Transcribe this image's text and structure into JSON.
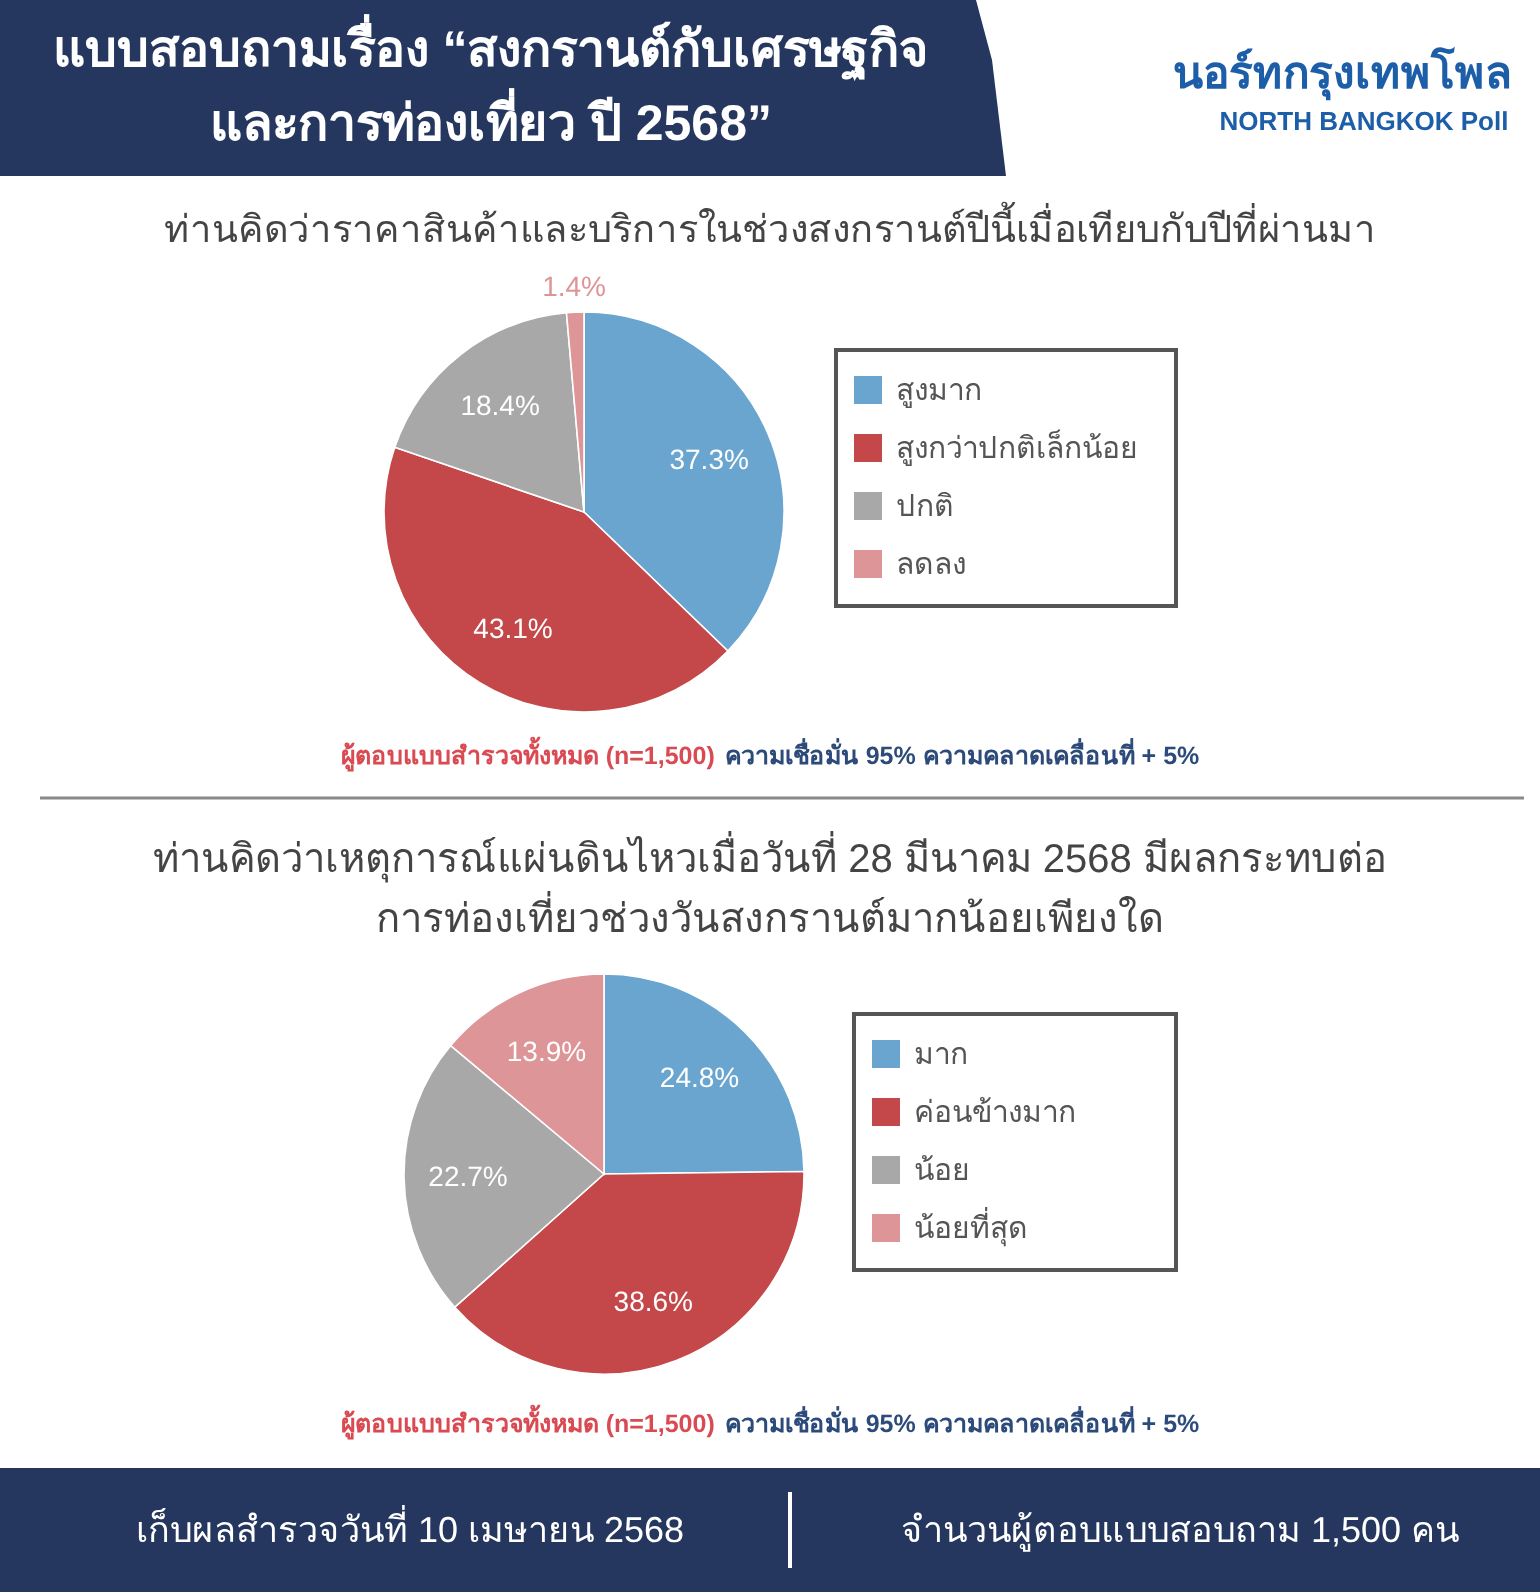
{
  "chart_data": [
    {
      "type": "pie",
      "title": "ท่านคิดว่าราคาสินค้าและบริการในช่วงสงกรานต์ปีนี้เมื่อเทียบกับปีที่ผ่านมา",
      "categories": [
        "สูงมาก",
        "สูงกว่าปกติเล็กน้อย",
        "ปกติ",
        "ลดลง"
      ],
      "values": [
        37.3,
        43.1,
        18.4,
        1.4
      ],
      "colors": [
        "#6aa5cf",
        "#c4474a",
        "#a8a8a8",
        "#dd9597"
      ],
      "value_labels": [
        "37.3%",
        "43.1%",
        "18.4%",
        "1.4%"
      ],
      "legend": "right",
      "annotations": [
        "แบบสอบถามเรื่อง “สงกรานต์กับเศรษฐกิจ\nและการท่องเที่ยว ปี 2568”",
        "นอร์ทกรุงเทพโพล",
        "NORTH BANGKOK Poll",
        "ผู้ตอบแบบสำรวจทั้งหมด (n=1,500)",
        "ความเชื่อมั่น 95% ความคลาดเคลื่อนที่ + 5%"
      ]
    },
    {
      "type": "pie",
      "title": "ท่านคิดว่าเหตุการณ์แผ่นดินไหวเมื่อวันที่ 28 มีนาคม 2568 มีผลกระทบต่อ\nการท่องเที่ยวช่วงวันสงกรานต์มากน้อยเพียงใด",
      "categories": [
        "มาก",
        "ค่อนข้างมาก",
        "น้อย",
        "น้อยที่สุด"
      ],
      "values": [
        24.8,
        38.6,
        22.7,
        13.9
      ],
      "colors": [
        "#6aa5cf",
        "#c4474a",
        "#a8a8a8",
        "#dd9597"
      ],
      "value_labels": [
        "24.8%",
        "38.6%",
        "22.7%",
        "13.9%"
      ],
      "legend": "right",
      "annotations": [
        "ผู้ตอบแบบสำรวจทั้งหมด (n=1,500)",
        "ความเชื่อมั่น 95% ความคลาดเคลื่อนที่ + 5%",
        "เก็บผลสำรวจวันที่ 10 เมษายน 2568",
        "จำนวนผู้ตอบแบบสอบถาม 1,500 คน"
      ]
    }
  ]
}
